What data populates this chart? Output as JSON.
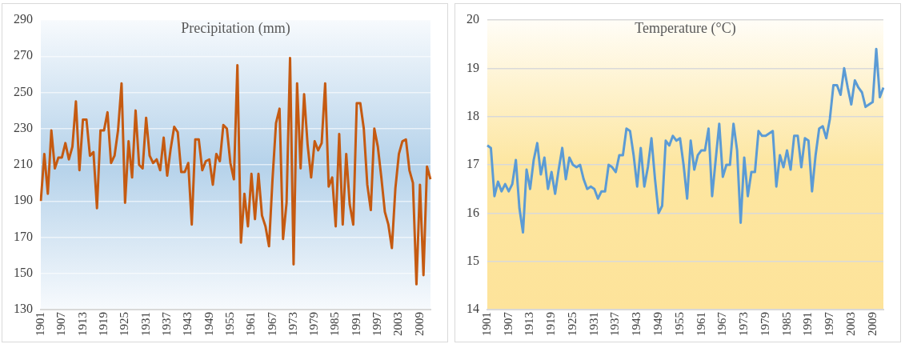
{
  "chart_data": [
    {
      "type": "line",
      "title": "Precipitation (mm)",
      "categories": [
        "1901",
        null,
        null,
        null,
        null,
        null,
        "1907",
        null,
        null,
        null,
        null,
        null,
        "1913",
        null,
        null,
        null,
        null,
        null,
        "1919",
        null,
        null,
        null,
        null,
        null,
        "1925",
        null,
        null,
        null,
        null,
        null,
        "1931",
        null,
        null,
        null,
        null,
        null,
        "1937",
        null,
        null,
        null,
        null,
        null,
        "1943",
        null,
        null,
        null,
        null,
        null,
        "1949",
        null,
        null,
        null,
        null,
        null,
        "1955",
        null,
        null,
        null,
        null,
        null,
        "1961",
        null,
        null,
        null,
        null,
        null,
        "1967",
        null,
        null,
        null,
        null,
        null,
        "1973",
        null,
        null,
        null,
        null,
        null,
        "1979",
        null,
        null,
        null,
        null,
        null,
        "1985",
        null,
        null,
        null,
        null,
        null,
        "1991",
        null,
        null,
        null,
        null,
        null,
        "1997",
        null,
        null,
        null,
        null,
        null,
        "2003",
        null,
        null,
        null,
        null,
        null,
        "2009",
        null,
        null,
        null
      ],
      "series": [
        {
          "color": "#c55a11",
          "values": [
            190,
            216,
            194,
            229,
            208,
            214,
            214,
            222,
            213,
            220,
            245,
            207,
            235,
            235,
            215,
            217,
            186,
            229,
            229,
            239,
            211,
            215,
            229,
            255,
            189,
            223,
            203,
            240,
            210,
            208,
            236,
            215,
            211,
            213,
            207,
            225,
            204,
            219,
            231,
            228,
            206,
            206,
            211,
            177,
            224,
            224,
            207,
            212,
            213,
            199,
            216,
            212,
            232,
            230,
            211,
            202,
            265,
            167,
            194,
            176,
            205,
            180,
            205,
            182,
            176,
            165,
            202,
            233,
            241,
            169,
            189,
            269,
            155,
            255,
            208,
            249,
            221,
            203,
            223,
            218,
            222,
            255,
            198,
            203,
            176,
            227,
            177,
            216,
            188,
            177,
            244,
            244,
            230,
            199,
            185,
            230,
            220,
            203,
            184,
            177,
            164,
            197,
            216,
            223,
            224,
            207,
            200,
            144,
            199,
            149,
            209,
            202
          ]
        }
      ],
      "ylim": [
        130,
        290
      ],
      "yticks": [
        130,
        150,
        170,
        190,
        210,
        230,
        250,
        270,
        290
      ],
      "grid": "y",
      "marker": "none",
      "line_style": "solid"
    },
    {
      "type": "line",
      "title": "Temperature (°C)",
      "categories": [
        "1901",
        null,
        null,
        null,
        null,
        null,
        "1907",
        null,
        null,
        null,
        null,
        null,
        "1913",
        null,
        null,
        null,
        null,
        null,
        "1919",
        null,
        null,
        null,
        null,
        null,
        "1925",
        null,
        null,
        null,
        null,
        null,
        "1931",
        null,
        null,
        null,
        null,
        null,
        "1937",
        null,
        null,
        null,
        null,
        null,
        "1943",
        null,
        null,
        null,
        null,
        null,
        "1949",
        null,
        null,
        null,
        null,
        null,
        "1955",
        null,
        null,
        null,
        null,
        null,
        "1961",
        null,
        null,
        null,
        null,
        null,
        "1967",
        null,
        null,
        null,
        null,
        null,
        "1973",
        null,
        null,
        null,
        null,
        null,
        "1979",
        null,
        null,
        null,
        null,
        null,
        "1985",
        null,
        null,
        null,
        null,
        null,
        "1991",
        null,
        null,
        null,
        null,
        null,
        "1997",
        null,
        null,
        null,
        null,
        null,
        "2003",
        null,
        null,
        null,
        null,
        null,
        "2009",
        null,
        null,
        null
      ],
      "series": [
        {
          "color": "#5b9bd5",
          "values": [
            17.4,
            17.35,
            16.35,
            16.65,
            16.45,
            16.6,
            16.45,
            16.6,
            17.1,
            16.1,
            15.6,
            16.9,
            16.5,
            17.1,
            17.45,
            16.8,
            17.15,
            16.5,
            16.85,
            16.4,
            16.9,
            17.35,
            16.7,
            17.15,
            17.0,
            16.95,
            17.0,
            16.7,
            16.5,
            16.55,
            16.5,
            16.3,
            16.45,
            16.45,
            17.0,
            16.95,
            16.85,
            17.2,
            17.2,
            17.75,
            17.7,
            17.2,
            16.55,
            17.35,
            16.55,
            16.95,
            17.55,
            16.7,
            16.0,
            16.15,
            17.5,
            17.4,
            17.6,
            17.5,
            17.55,
            17.0,
            16.3,
            17.5,
            16.9,
            17.2,
            17.3,
            17.3,
            17.75,
            16.35,
            17.1,
            17.85,
            16.75,
            17.0,
            17.0,
            17.85,
            17.3,
            15.8,
            17.15,
            16.35,
            16.85,
            16.85,
            17.7,
            17.6,
            17.6,
            17.65,
            17.7,
            16.55,
            17.2,
            16.95,
            17.3,
            16.9,
            17.6,
            17.6,
            16.95,
            17.55,
            17.5,
            16.45,
            17.2,
            17.75,
            17.8,
            17.55,
            17.95,
            18.65,
            18.65,
            18.45,
            19.0,
            18.6,
            18.25,
            18.75,
            18.6,
            18.5,
            18.2,
            18.25,
            18.3,
            19.4,
            18.4,
            18.6
          ]
        }
      ],
      "ylim": [
        14,
        20
      ],
      "yticks": [
        14,
        15,
        16,
        17,
        18,
        19,
        20
      ],
      "grid": "y",
      "marker": "none",
      "line_style": "solid"
    }
  ]
}
